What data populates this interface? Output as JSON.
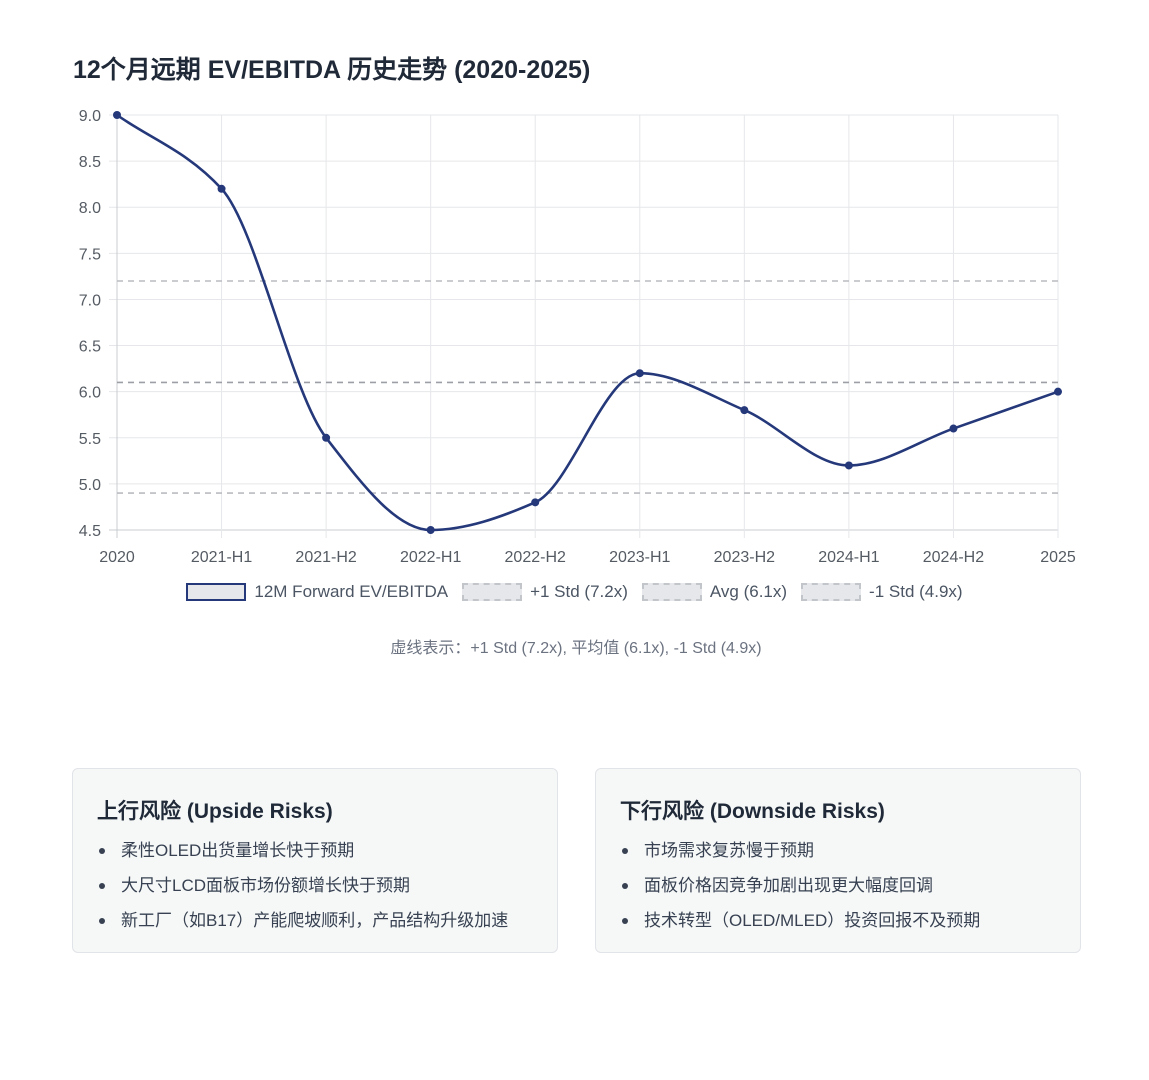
{
  "page": {
    "title": "12个月远期 EV/EBITDA 历史走势 (2020-2025)",
    "note": "虚线表示：+1 Std (7.2x), 平均值 (6.1x), -1 Std (4.9x)"
  },
  "chart_data": {
    "type": "line",
    "title": "12个月远期 EV/EBITDA 历史走势 (2020-2025)",
    "categories": [
      "2020",
      "2021-H1",
      "2021-H2",
      "2022-H1",
      "2022-H2",
      "2023-H1",
      "2023-H2",
      "2024-H1",
      "2024-H2",
      "2025"
    ],
    "series": [
      {
        "name": "12M Forward EV/EBITDA",
        "values": [
          9.0,
          8.2,
          5.5,
          4.5,
          4.8,
          6.2,
          5.8,
          5.2,
          5.6,
          6.0
        ],
        "color": "#24387a"
      }
    ],
    "reference_lines": [
      {
        "name": "+1 Std (7.2x)",
        "value": 7.2,
        "color": "#b9bcc1"
      },
      {
        "name": "Avg (6.1x)",
        "value": 6.1,
        "color": "#9ca0a6"
      },
      {
        "name": "-1 Std (4.9x)",
        "value": 4.9,
        "color": "#b9bcc1"
      }
    ],
    "ylim": [
      4.5,
      9.0
    ],
    "yticks": [
      "9.0",
      "8.5",
      "8.0",
      "7.5",
      "7.0",
      "6.5",
      "6.0",
      "5.5",
      "5.0",
      "4.5"
    ],
    "grid": true,
    "legend_position": "bottom"
  },
  "risks": {
    "upside": {
      "title": "上行风险 (Upside Risks)",
      "items": [
        "柔性OLED出货量增长快于预期",
        "大尺寸LCD面板市场份额增长快于预期",
        "新工厂（如B17）产能爬坡顺利，产品结构升级加速"
      ]
    },
    "downside": {
      "title": "下行风险 (Downside Risks)",
      "items": [
        "市场需求复苏慢于预期",
        "面板价格因竞争加剧出现更大幅度回调",
        "技术转型（OLED/MLED）投资回报不及预期"
      ]
    }
  }
}
